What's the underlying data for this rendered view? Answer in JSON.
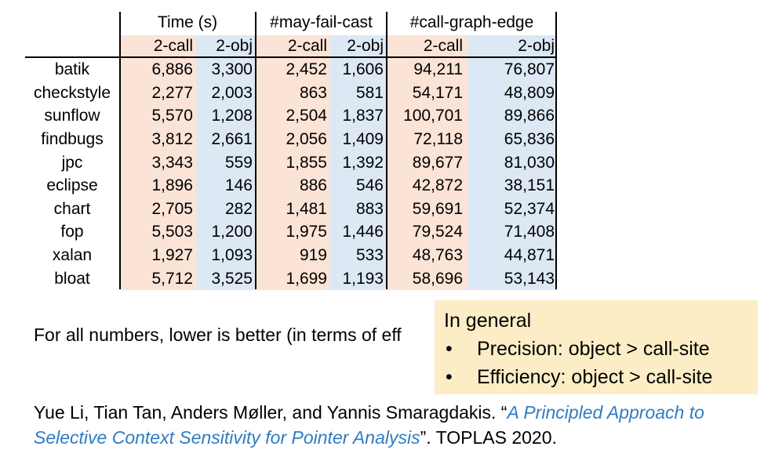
{
  "table": {
    "groups": [
      "Time (s)",
      "#may-fail-cast",
      "#call-graph-edge"
    ],
    "subheaders": [
      "2-call",
      "2-obj",
      "2-call",
      "2-obj",
      "2-call",
      "2-obj"
    ],
    "rows": [
      {
        "name": "batik",
        "v": [
          "6,886",
          "3,300",
          "2,452",
          "1,606",
          "94,211",
          "76,807"
        ]
      },
      {
        "name": "checkstyle",
        "v": [
          "2,277",
          "2,003",
          "863",
          "581",
          "54,171",
          "48,809"
        ]
      },
      {
        "name": "sunflow",
        "v": [
          "5,570",
          "1,208",
          "2,504",
          "1,837",
          "100,701",
          "89,866"
        ]
      },
      {
        "name": "findbugs",
        "v": [
          "3,812",
          "2,661",
          "2,056",
          "1,409",
          "72,118",
          "65,836"
        ]
      },
      {
        "name": "jpc",
        "v": [
          "3,343",
          "559",
          "1,855",
          "1,392",
          "89,677",
          "81,030"
        ]
      },
      {
        "name": "eclipse",
        "v": [
          "1,896",
          "146",
          "886",
          "546",
          "42,872",
          "38,151"
        ]
      },
      {
        "name": "chart",
        "v": [
          "2,705",
          "282",
          "1,481",
          "883",
          "59,691",
          "52,374"
        ]
      },
      {
        "name": "fop",
        "v": [
          "5,503",
          "1,200",
          "1,975",
          "1,446",
          "79,524",
          "71,408"
        ]
      },
      {
        "name": "xalan",
        "v": [
          "1,927",
          "1,093",
          "919",
          "533",
          "48,763",
          "44,871"
        ]
      },
      {
        "name": "bloat",
        "v": [
          "5,712",
          "3,525",
          "1,699",
          "1,193",
          "58,696",
          "53,143"
        ]
      }
    ]
  },
  "note": "For all numbers, lower is better (in terms of eff",
  "callout": {
    "heading": "In general",
    "bullet_glyph": "•",
    "bullets": [
      "Precision: object > call-site",
      "Efficiency: object > call-site"
    ]
  },
  "citation": {
    "authors": "Yue Li, Tian Tan, Anders Møller, and Yannis Smaragdakis. “",
    "title": "A Principled Approach to Selective Context Sensitivity for Pointer Analysis",
    "venue": "”. TOPLAS 2020."
  },
  "colors": {
    "call_site_fill": "#fbe3d6",
    "object_fill": "#dde8f5",
    "callout_fill": "#fcedc6",
    "link": "#2f7cc3"
  }
}
